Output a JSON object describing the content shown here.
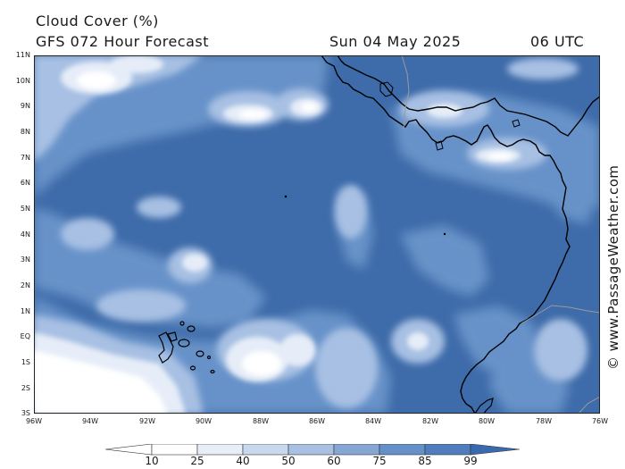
{
  "header": {
    "title_line1": "Cloud Cover (%)",
    "title_line2": "GFS 072 Hour Forecast",
    "date": "Sun 04 May 2025",
    "time": "06 UTC"
  },
  "credit": "© www.PassageWeather.com",
  "axes": {
    "lat_labels": [
      "11N",
      "10N",
      "9N",
      "8N",
      "7N",
      "6N",
      "5N",
      "4N",
      "3N",
      "2N",
      "1N",
      "EQ",
      "1S",
      "2S",
      "3S"
    ],
    "lon_labels": [
      "96W",
      "94W",
      "92W",
      "90W",
      "88W",
      "86W",
      "84W",
      "82W",
      "80W",
      "78W",
      "76W"
    ]
  },
  "colorbar": {
    "labels": [
      "10",
      "25",
      "40",
      "50",
      "60",
      "75",
      "85",
      "99"
    ],
    "colors": [
      "#ffffff",
      "#e8eef8",
      "#c8d8ee",
      "#a8c0e2",
      "#86a6d4",
      "#6690c8",
      "#4f7dbd",
      "#3a6aad"
    ]
  },
  "map": {
    "base_color": "#3e6ba9",
    "land_outline_color": "#000000",
    "border_color": "#9a9a9a"
  }
}
